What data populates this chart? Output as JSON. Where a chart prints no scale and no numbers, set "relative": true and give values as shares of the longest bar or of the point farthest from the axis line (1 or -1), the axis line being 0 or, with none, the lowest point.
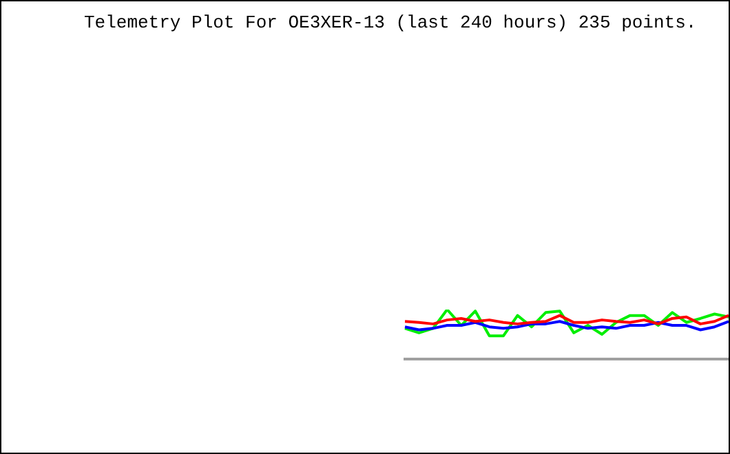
{
  "chart_data": {
    "type": "line",
    "title": "Telemetry Plot For OE3XER-13 (last 240 hours) 235 points.",
    "relative": true,
    "categories": [
      null,
      null,
      null,
      null,
      null,
      null,
      null,
      null,
      null,
      null,
      null,
      null,
      null,
      null,
      null,
      null,
      null,
      null,
      null,
      null,
      null,
      null,
      null,
      null
    ],
    "series": [
      {
        "color": "#ff0000",
        "values": [
          0.76,
          0.74,
          0.71,
          0.79,
          0.82,
          0.76,
          0.79,
          0.74,
          0.71,
          0.74,
          0.76,
          0.88,
          0.74,
          0.74,
          0.79,
          0.76,
          0.74,
          0.79,
          0.71,
          0.82,
          0.85,
          0.71,
          0.76,
          0.88
        ]
      },
      {
        "color": "#0000ff",
        "values": [
          0.65,
          0.59,
          0.62,
          0.68,
          0.68,
          0.74,
          0.65,
          0.62,
          0.65,
          0.71,
          0.71,
          0.76,
          0.68,
          0.62,
          0.65,
          0.62,
          0.68,
          0.68,
          0.74,
          0.68,
          0.68,
          0.59,
          0.65,
          0.76
        ]
      },
      {
        "color": "#00ee00",
        "values": [
          0.62,
          0.53,
          0.62,
          1,
          0.68,
          0.97,
          0.47,
          0.47,
          0.88,
          0.65,
          0.94,
          0.97,
          0.53,
          0.68,
          0.5,
          0.74,
          0.88,
          0.88,
          0.68,
          0.94,
          0.74,
          0.82,
          0.91,
          0.85
        ]
      }
    ]
  }
}
